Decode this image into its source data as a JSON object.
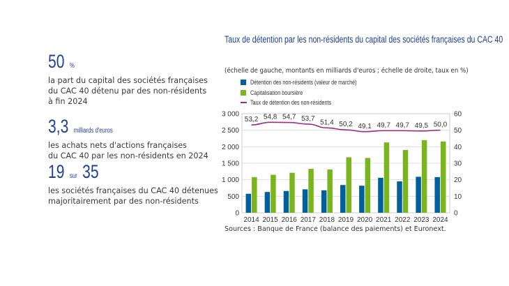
{
  "key_figures": [
    {
      "value": "50",
      "unit": "%",
      "text": [
        "la part du capital des sociétés françaises",
        "du CAC 40 détenu par des non-résidents",
        "à fin 2024"
      ]
    },
    {
      "value": "3,3",
      "unit": "milliards d'euros",
      "text": [
        "les achats nets d'actions françaises",
        "du CAC 40 par les non-résidents en 2024"
      ]
    },
    {
      "value": "19",
      "unit": "sur",
      "value2": "35",
      "text": [
        "les sociétés françaises du CAC 40 détenues",
        "majoritairement par des non-résidents"
      ]
    }
  ],
  "chart_data": {
    "type": "bar",
    "title": "Taux de détention par les non-résidents du capital des sociétés françaises du CAC 40",
    "subtitle": "(échelle de gauche, montants en milliards d'euros ; échelle de droite, taux en %)",
    "categories": [
      "2014",
      "2015",
      "2016",
      "2017",
      "2018",
      "2019",
      "2020",
      "2021",
      "2022",
      "2023",
      "2024"
    ],
    "series": [
      {
        "name": "Détention des non-résidents (valeur de marché)",
        "type": "bar",
        "axis": "left",
        "color": "#00609c",
        "values": [
          575,
          630,
          660,
          710,
          680,
          840,
          820,
          1060,
          950,
          1090,
          1080
        ]
      },
      {
        "name": "Capitalisation boursière",
        "type": "bar",
        "axis": "left",
        "color": "#7ab51d",
        "values": [
          1080,
          1150,
          1210,
          1330,
          1310,
          1680,
          1660,
          2130,
          1900,
          2200,
          2160
        ]
      },
      {
        "name": "Taux de détention des non-résidents",
        "type": "line",
        "axis": "right",
        "color": "#9c2a8c",
        "values": [
          53.2,
          54.8,
          54.7,
          53.7,
          51.4,
          50.2,
          49.1,
          49.7,
          49.7,
          49.5,
          50.0
        ],
        "labels": [
          "53,2",
          "54,8",
          "54,7",
          "53,7",
          "51,4",
          "50,2",
          "49,1",
          "49,7",
          "49,7",
          "49,5",
          "50,0"
        ]
      }
    ],
    "y_left": {
      "range": [
        0,
        3000
      ],
      "ticks": [
        "0",
        "500",
        "1 000",
        "1 500",
        "2 000",
        "2 500",
        "3 000"
      ]
    },
    "y_right": {
      "range": [
        0,
        60
      ],
      "ticks": [
        "0",
        "10",
        "20",
        "30",
        "40",
        "50",
        "60"
      ]
    },
    "grid": true,
    "legend": "top-left",
    "source": "Sources : Banque de France (balance des paiements) et Euronext."
  }
}
